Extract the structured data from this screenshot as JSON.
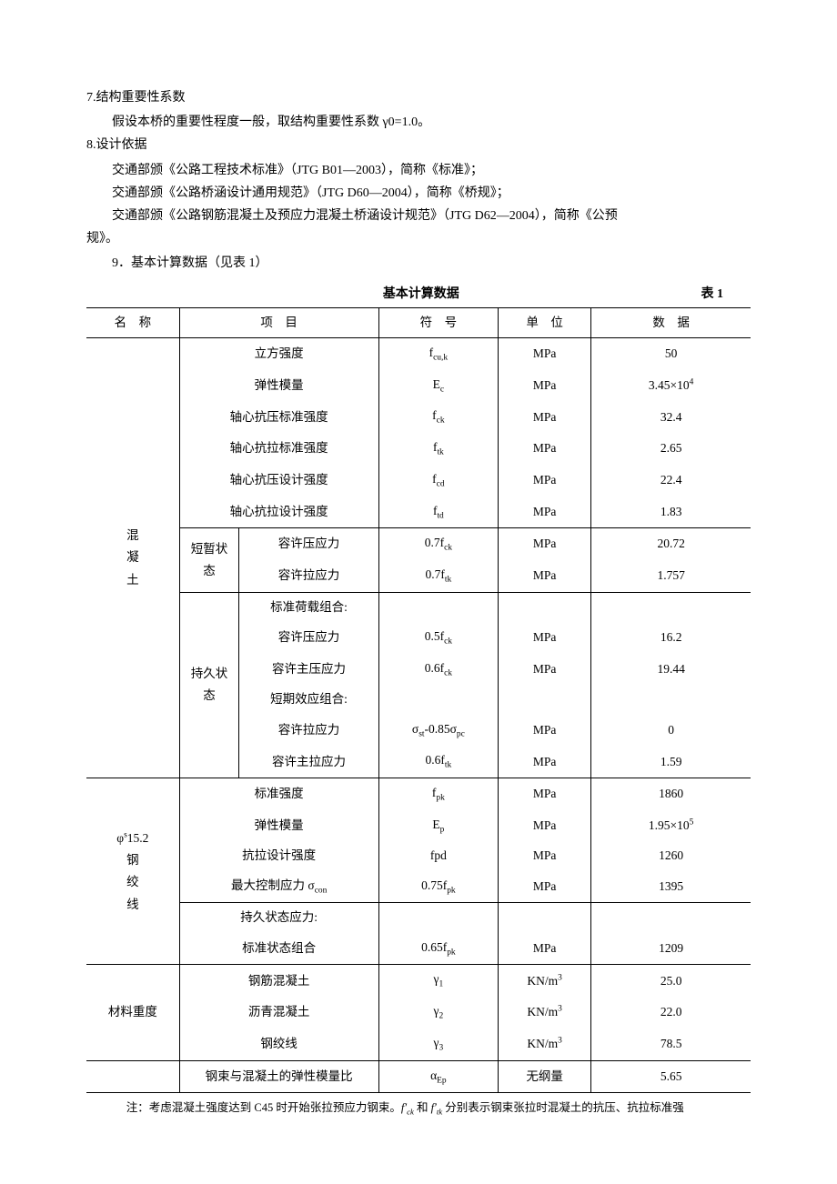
{
  "sections": {
    "s7": {
      "heading": "7.结构重要性系数",
      "body": "假设本桥的重要性程度一般，取结构重要性系数 γ0=1.0。"
    },
    "s8": {
      "heading": "8.设计依据",
      "line1": "交通部颁《公路工程技术标准》（JTG B01—2003），简称《标准》；",
      "line2": "交通部颁《公路桥涵设计通用规范》（JTG D60—2004），简称《桥规》；",
      "line3": "交通部颁《公路钢筋混凝土及预应力混凝土桥涵设计规范》（JTG D62—2004），简称《公预",
      "line3b": "规》。"
    },
    "s9": {
      "heading": "9．基本计算数据（见表 1）"
    }
  },
  "table": {
    "caption_center": "基本计算数据",
    "caption_right": "表 1",
    "headers": [
      "名　称",
      "项　目",
      "符　号",
      "单　位",
      "数　据"
    ],
    "groups": [
      {
        "name_lines": [
          "混",
          "凝",
          "土"
        ],
        "blocks": [
          {
            "rows": [
              {
                "item": "立方强度",
                "symbol_html": "f<sub>cu,k</sub>",
                "unit": "MPa",
                "value": "50"
              },
              {
                "item": "弹性模量",
                "symbol_html": "E<sub>c</sub>",
                "unit": "MPa",
                "value_html": "3.45×10<sup>4</sup>"
              },
              {
                "item": "轴心抗压标准强度",
                "symbol_html": "f<sub>ck</sub>",
                "unit": "MPa",
                "value": "32.4"
              },
              {
                "item": "轴心抗拉标准强度",
                "symbol_html": "f<sub>tk</sub>",
                "unit": "MPa",
                "value": "2.65"
              },
              {
                "item": "轴心抗压设计强度",
                "symbol_html": "f<sub>cd</sub>",
                "unit": "MPa",
                "value": "22.4"
              },
              {
                "item": "轴心抗拉设计强度",
                "symbol_html": "f<sub>td</sub>",
                "unit": "MPa",
                "value": "1.83"
              }
            ]
          },
          {
            "sub_label": "短暂状态",
            "rows": [
              {
                "item": "容许压应力",
                "symbol_html": "0.7f<sub>ck</sub>",
                "unit": "MPa",
                "value": "20.72"
              },
              {
                "item": "容许拉应力",
                "symbol_html": "0.7f<sub>tk</sub>",
                "unit": "MPa",
                "value": "1.757"
              }
            ]
          },
          {
            "sub_label": "持久状态",
            "rows": [
              {
                "item": "标准荷载组合:",
                "symbol_html": "",
                "unit": "",
                "value": ""
              },
              {
                "item": "容许压应力",
                "symbol_html": "0.5f<sub>ck</sub>",
                "unit": "MPa",
                "value": "16.2"
              },
              {
                "item": "容许主压应力",
                "symbol_html": "0.6f<sub>ck</sub>",
                "unit": "MPa",
                "value": "19.44"
              },
              {
                "item": "短期效应组合:",
                "symbol_html": "",
                "unit": "",
                "value": ""
              },
              {
                "item": "容许拉应力",
                "symbol_html": "σ<sub>st</sub>-0.85σ<sub>pc</sub>",
                "unit": "MPa",
                "value": "0"
              },
              {
                "item": "容许主拉应力",
                "symbol_html": "0.6f<sub>tk</sub>",
                "unit": "MPa",
                "value": "1.59"
              }
            ]
          }
        ]
      },
      {
        "name_lines": [
          "φ<sup>s</sup>15.2",
          "钢",
          "绞",
          "线"
        ],
        "blocks": [
          {
            "rows": [
              {
                "item": "标准强度",
                "symbol_html": "f<sub>pk</sub>",
                "unit": "MPa",
                "value": "1860"
              },
              {
                "item": "弹性模量",
                "symbol_html": "E<sub>p</sub>",
                "unit": "MPa",
                "value_html": "1.95×10<sup>5</sup>"
              },
              {
                "item": "抗拉设计强度",
                "symbol_html": "fpd",
                "unit": "MPa",
                "value": "1260"
              },
              {
                "item_html": "最大控制应力 σ<sub>con</sub>",
                "symbol_html": "0.75f<sub>pk</sub>",
                "unit": "MPa",
                "value": "1395"
              }
            ]
          },
          {
            "rows": [
              {
                "item": "持久状态应力:",
                "symbol_html": "",
                "unit": "",
                "value": ""
              },
              {
                "item": "标准状态组合",
                "symbol_html": "0.65f<sub>pk</sub>",
                "unit": "MPa",
                "value": "1209"
              }
            ]
          }
        ]
      },
      {
        "name_lines": [
          "材料重度"
        ],
        "blocks": [
          {
            "rows": [
              {
                "item": "钢筋混凝土",
                "symbol_html": "γ<sub>1</sub>",
                "unit_html": "KN/m<sup>3</sup>",
                "unit": "",
                "value": "25.0"
              },
              {
                "item": "沥青混凝土",
                "symbol_html": "γ<sub>2</sub>",
                "unit_html": "KN/m<sup>3</sup>",
                "unit": "",
                "value": "22.0"
              },
              {
                "item": "钢绞线",
                "symbol_html": "γ<sub>3</sub>",
                "unit_html": "KN/m<sup>3</sup>",
                "unit": "",
                "value": "78.5"
              }
            ]
          }
        ]
      },
      {
        "name_lines": [
          ""
        ],
        "blocks": [
          {
            "rows": [
              {
                "item": "钢束与混凝土的弹性模量比",
                "symbol_html": "α<sub>Ep</sub>",
                "unit": "无纲量",
                "value": "5.65"
              }
            ]
          }
        ]
      }
    ],
    "note_html": "注：考虑混凝土强度达到 C45 时开始张拉预应力钢束。<span class=\"ital\">f′<sub>ck</sub></span> 和 <span class=\"ital\">f′<sub>tk</sub></span> 分别表示钢束张拉时混凝土的抗压、抗拉标准强",
    "colwidths_pct": [
      14,
      9,
      21,
      18,
      14,
      24
    ],
    "border_color": "#000000",
    "background_color": "#ffffff",
    "font_size_pt": 10.5
  }
}
